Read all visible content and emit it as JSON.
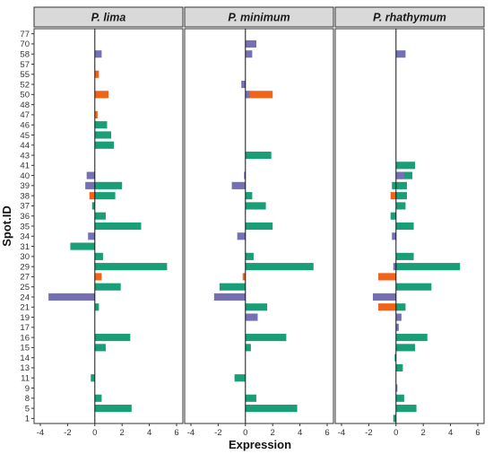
{
  "chart_data": {
    "type": "bar",
    "orientation": "horizontal",
    "xlabel": "Expression",
    "ylabel": "Spot.ID",
    "xlim": [
      -4,
      6
    ],
    "x_ticks": [
      "-4",
      "-2",
      "0",
      "2",
      "4",
      "6"
    ],
    "categories": [
      "1",
      "5",
      "8",
      "9",
      "11",
      "13",
      "14",
      "15",
      "16",
      "17",
      "19",
      "21",
      "24",
      "25",
      "27",
      "29",
      "30",
      "31",
      "34",
      "35",
      "36",
      "37",
      "38",
      "39",
      "40",
      "41",
      "43",
      "44",
      "45",
      "46",
      "47",
      "48",
      "50",
      "52",
      "55",
      "57",
      "58",
      "70",
      "77"
    ],
    "colors": {
      "green": "#1a9e77",
      "purple": "#7570b3",
      "orange": "#f06318"
    },
    "panels": [
      {
        "title": "P. lima",
        "bars": [
          {
            "id": "5",
            "value": 2.7,
            "color": "green"
          },
          {
            "id": "8",
            "value": 0.5,
            "color": "green"
          },
          {
            "id": "11",
            "value": -0.3,
            "color": "green"
          },
          {
            "id": "15",
            "value": 0.8,
            "color": "green"
          },
          {
            "id": "16",
            "value": 2.6,
            "color": "green"
          },
          {
            "id": "21",
            "value": 0.3,
            "color": "green"
          },
          {
            "id": "24",
            "value": -3.4,
            "color": "purple"
          },
          {
            "id": "25",
            "value": 1.9,
            "color": "green"
          },
          {
            "id": "27",
            "value": 0.5,
            "color": "orange"
          },
          {
            "id": "29",
            "value": 5.3,
            "color": "green"
          },
          {
            "id": "30",
            "value": 0.6,
            "color": "green"
          },
          {
            "id": "31",
            "value": -1.8,
            "color": "green"
          },
          {
            "id": "34",
            "value": -0.5,
            "color": "purple"
          },
          {
            "id": "35",
            "value": 3.4,
            "color": "green"
          },
          {
            "id": "36",
            "value": 0.8,
            "color": "green"
          },
          {
            "id": "37",
            "value": -0.2,
            "color": "green"
          },
          {
            "id": "38",
            "value": 1.5,
            "color": "green"
          },
          {
            "id": "38",
            "value": -0.4,
            "color": "orange"
          },
          {
            "id": "39",
            "value": 2.0,
            "color": "green"
          },
          {
            "id": "39",
            "value": -0.7,
            "color": "purple"
          },
          {
            "id": "40",
            "value": -0.6,
            "color": "purple"
          },
          {
            "id": "44",
            "value": 1.4,
            "color": "green"
          },
          {
            "id": "45",
            "value": 1.2,
            "color": "green"
          },
          {
            "id": "46",
            "value": 0.9,
            "color": "green"
          },
          {
            "id": "47",
            "value": 0.2,
            "color": "orange"
          },
          {
            "id": "50",
            "value": 1.0,
            "color": "orange"
          },
          {
            "id": "55",
            "value": 0.3,
            "color": "orange"
          },
          {
            "id": "58",
            "value": 0.5,
            "color": "purple"
          }
        ]
      },
      {
        "title": "P. minimum",
        "bars": [
          {
            "id": "5",
            "value": 3.8,
            "color": "green"
          },
          {
            "id": "8",
            "value": 0.8,
            "color": "green"
          },
          {
            "id": "11",
            "value": -0.8,
            "color": "green"
          },
          {
            "id": "15",
            "value": 0.4,
            "color": "green"
          },
          {
            "id": "16",
            "value": 3.0,
            "color": "green"
          },
          {
            "id": "19",
            "value": 0.9,
            "color": "purple"
          },
          {
            "id": "21",
            "value": 1.6,
            "color": "green"
          },
          {
            "id": "24",
            "value": -2.3,
            "color": "purple"
          },
          {
            "id": "25",
            "value": -1.9,
            "color": "green"
          },
          {
            "id": "27",
            "value": -0.2,
            "color": "orange"
          },
          {
            "id": "29",
            "value": 5.0,
            "color": "green"
          },
          {
            "id": "30",
            "value": 0.6,
            "color": "green"
          },
          {
            "id": "34",
            "value": -0.6,
            "color": "purple"
          },
          {
            "id": "35",
            "value": 2.0,
            "color": "green"
          },
          {
            "id": "37",
            "value": 1.5,
            "color": "green"
          },
          {
            "id": "38",
            "value": 0.5,
            "color": "green"
          },
          {
            "id": "39",
            "value": -1.0,
            "color": "purple"
          },
          {
            "id": "40",
            "value": -0.1,
            "color": "purple"
          },
          {
            "id": "43",
            "value": 1.9,
            "color": "green"
          },
          {
            "id": "50",
            "value": 2.0,
            "color": "orange"
          },
          {
            "id": "50",
            "value": 0.3,
            "color": "purple"
          },
          {
            "id": "52",
            "value": -0.3,
            "color": "purple"
          },
          {
            "id": "58",
            "value": 0.5,
            "color": "purple"
          },
          {
            "id": "70",
            "value": 0.8,
            "color": "purple"
          }
        ]
      },
      {
        "title": "P. rhathymum",
        "bars": [
          {
            "id": "1",
            "value": -0.2,
            "color": "green"
          },
          {
            "id": "5",
            "value": 1.5,
            "color": "green"
          },
          {
            "id": "8",
            "value": 0.6,
            "color": "green"
          },
          {
            "id": "9",
            "value": 0.1,
            "color": "purple"
          },
          {
            "id": "13",
            "value": 0.5,
            "color": "green"
          },
          {
            "id": "14",
            "value": -0.1,
            "color": "green"
          },
          {
            "id": "15",
            "value": 1.4,
            "color": "green"
          },
          {
            "id": "16",
            "value": 2.3,
            "color": "green"
          },
          {
            "id": "17",
            "value": 0.2,
            "color": "purple"
          },
          {
            "id": "19",
            "value": 0.4,
            "color": "purple"
          },
          {
            "id": "21",
            "value": 0.7,
            "color": "green"
          },
          {
            "id": "21",
            "value": -1.3,
            "color": "orange"
          },
          {
            "id": "24",
            "value": -1.7,
            "color": "purple"
          },
          {
            "id": "25",
            "value": 2.6,
            "color": "green"
          },
          {
            "id": "27",
            "value": -1.3,
            "color": "orange"
          },
          {
            "id": "29",
            "value": 4.7,
            "color": "green"
          },
          {
            "id": "29",
            "value": -0.2,
            "color": "purple"
          },
          {
            "id": "30",
            "value": 1.3,
            "color": "green"
          },
          {
            "id": "34",
            "value": -0.3,
            "color": "purple"
          },
          {
            "id": "35",
            "value": 1.3,
            "color": "green"
          },
          {
            "id": "36",
            "value": -0.4,
            "color": "green"
          },
          {
            "id": "37",
            "value": 0.7,
            "color": "green"
          },
          {
            "id": "38",
            "value": 0.8,
            "color": "green"
          },
          {
            "id": "38",
            "value": -0.4,
            "color": "orange"
          },
          {
            "id": "39",
            "value": 0.8,
            "color": "green"
          },
          {
            "id": "39",
            "value": -0.3,
            "color": "green"
          },
          {
            "id": "40",
            "value": 1.2,
            "color": "green"
          },
          {
            "id": "40",
            "value": 0.6,
            "color": "purple"
          },
          {
            "id": "41",
            "value": 1.4,
            "color": "green"
          },
          {
            "id": "58",
            "value": 0.7,
            "color": "purple"
          }
        ]
      }
    ]
  }
}
